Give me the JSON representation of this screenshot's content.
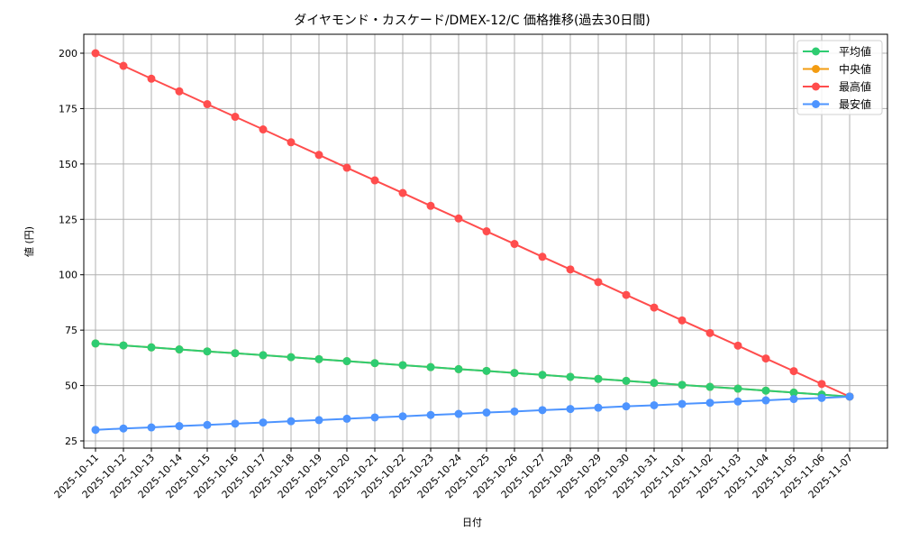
{
  "chart_data": {
    "type": "line",
    "title": "ダイヤモンド・カスケード/DMEX-12/C 価格推移(過去30日間)",
    "xlabel": "日付",
    "ylabel": "値 (円)",
    "ylim": [
      22,
      208
    ],
    "yticks": [
      25,
      50,
      75,
      100,
      125,
      150,
      175,
      200
    ],
    "grid": true,
    "legend_position": "upper right",
    "x": [
      "2025-10-11",
      "2025-10-12",
      "2025-10-13",
      "2025-10-14",
      "2025-10-15",
      "2025-10-16",
      "2025-10-17",
      "2025-10-18",
      "2025-10-19",
      "2025-10-20",
      "2025-10-21",
      "2025-10-22",
      "2025-10-23",
      "2025-10-24",
      "2025-10-25",
      "2025-10-26",
      "2025-10-27",
      "2025-10-28",
      "2025-10-29",
      "2025-10-30",
      "2025-10-31",
      "2025-11-01",
      "2025-11-02",
      "2025-11-03",
      "2025-11-04",
      "2025-11-05",
      "2025-11-06",
      "2025-11-07"
    ],
    "series": [
      {
        "name": "平均値",
        "color": "#2ecc71",
        "values": [
          69.0,
          68.1,
          67.2,
          66.3,
          65.4,
          64.6,
          63.7,
          62.8,
          61.9,
          61.0,
          60.1,
          59.2,
          58.3,
          57.4,
          56.6,
          55.7,
          54.8,
          53.9,
          53.0,
          52.1,
          51.2,
          50.3,
          49.4,
          48.6,
          47.7,
          46.8,
          45.9,
          45.0
        ]
      },
      {
        "name": "中央値",
        "color": "#f39c12",
        "values": [
          69.0,
          68.1,
          67.2,
          66.3,
          65.4,
          64.6,
          63.7,
          62.8,
          61.9,
          61.0,
          60.1,
          59.2,
          58.3,
          57.4,
          56.6,
          55.7,
          54.8,
          53.9,
          53.0,
          52.1,
          51.2,
          50.3,
          49.4,
          48.6,
          47.7,
          46.8,
          45.9,
          45.0
        ]
      },
      {
        "name": "最高値",
        "color": "#ff4d4d",
        "values": [
          200.0,
          194.3,
          188.5,
          182.8,
          177.0,
          171.3,
          165.6,
          159.8,
          154.1,
          148.3,
          142.6,
          136.9,
          131.1,
          125.4,
          119.6,
          113.9,
          108.1,
          102.4,
          96.7,
          90.9,
          85.2,
          79.4,
          73.7,
          68.0,
          62.2,
          56.5,
          50.7,
          45.0
        ]
      },
      {
        "name": "最安値",
        "color": "#4d94ff",
        "values": [
          30.0,
          30.6,
          31.1,
          31.7,
          32.2,
          32.8,
          33.3,
          33.9,
          34.4,
          35.0,
          35.6,
          36.1,
          36.7,
          37.2,
          37.8,
          38.3,
          38.9,
          39.4,
          40.0,
          40.6,
          41.1,
          41.7,
          42.2,
          42.8,
          43.3,
          43.9,
          44.4,
          45.0
        ]
      }
    ]
  },
  "legend": {
    "items": [
      {
        "label": "平均値",
        "color": "#2ecc71"
      },
      {
        "label": "中央値",
        "color": "#f39c12"
      },
      {
        "label": "最高値",
        "color": "#ff4d4d"
      },
      {
        "label": "最安値",
        "color": "#4d94ff"
      }
    ]
  },
  "colors": {
    "grid": "#b0b0b0",
    "axis": "#000000",
    "background": "#ffffff"
  }
}
